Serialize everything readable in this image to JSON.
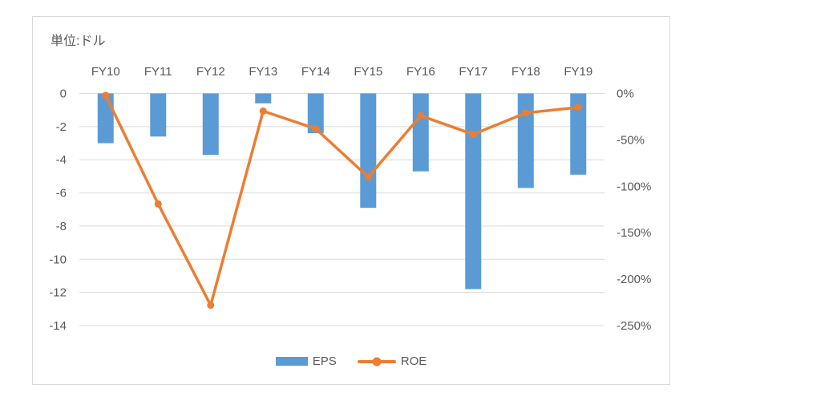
{
  "colors": {
    "bar": "#5B9BD5",
    "line": "#ED7D31",
    "grid": "#D9D9D9",
    "text": "#595959",
    "border": "#D9D9D9",
    "background": "#FFFFFF"
  },
  "chart_data": {
    "type": "combo-bar-line",
    "title": "単位:ドル",
    "categories": [
      "FY10",
      "FY11",
      "FY12",
      "FY13",
      "FY14",
      "FY15",
      "FY16",
      "FY17",
      "FY18",
      "FY19"
    ],
    "series": [
      {
        "name": "EPS",
        "type": "bar",
        "axis": "left",
        "color": "#5B9BD5",
        "values": [
          -3.0,
          -2.6,
          -3.7,
          -0.6,
          -2.4,
          -6.9,
          -4.7,
          -11.8,
          -5.7,
          -4.9
        ]
      },
      {
        "name": "ROE",
        "type": "line",
        "axis": "right",
        "unit": "%",
        "color": "#ED7D31",
        "values": [
          -2,
          -119,
          -228,
          -19,
          -38,
          -90,
          -24,
          -44,
          -21,
          -15
        ]
      }
    ],
    "left_axis": {
      "ticks": [
        "0",
        "-2",
        "-4",
        "-6",
        "-8",
        "-10",
        "-12",
        "-14"
      ],
      "range": [
        -14,
        0
      ]
    },
    "right_axis": {
      "ticks": [
        "0%",
        "-50%",
        "-100%",
        "-150%",
        "-200%",
        "-250%"
      ],
      "range": [
        -250,
        0
      ]
    },
    "grid": true,
    "legend_position": "bottom",
    "category_labels_position": "top"
  }
}
